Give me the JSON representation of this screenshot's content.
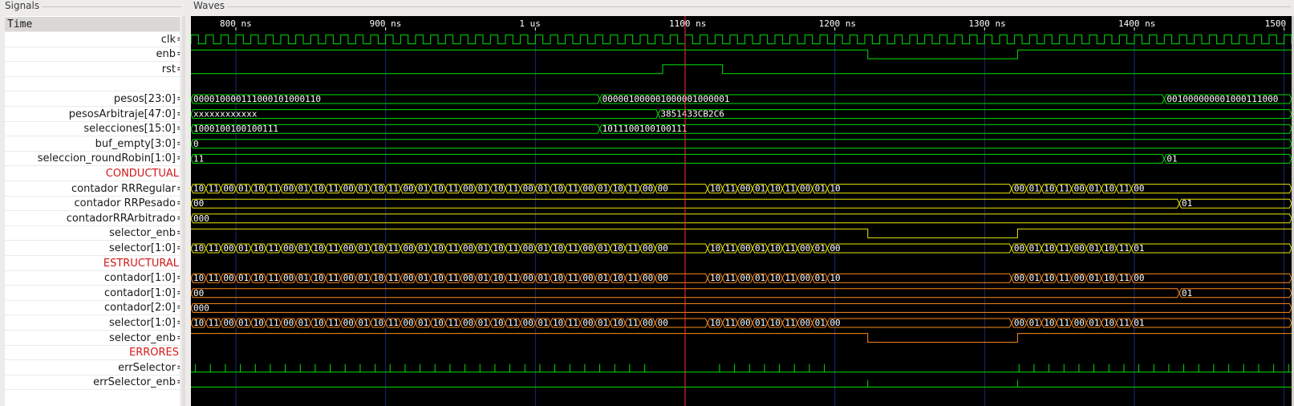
{
  "panels": {
    "signals_title": "Signals",
    "waves_title": "Waves"
  },
  "signals": [
    {
      "name": "Time",
      "kind": "header"
    },
    {
      "name": "clk",
      "val": "=0"
    },
    {
      "name": "enb",
      "val": "=1"
    },
    {
      "name": "rst",
      "val": "=1"
    },
    {
      "name": "",
      "kind": "blank"
    },
    {
      "name": "pesos[23:0]",
      "val": "=0"
    },
    {
      "name": "pesosArbitraje[47:0]",
      "val": "=3"
    },
    {
      "name": "selecciones[15:0]",
      "val": "=1"
    },
    {
      "name": "buf_empty[3:0]",
      "val": "=0"
    },
    {
      "name": "seleccion_roundRobin[1:0]",
      "val": "=1"
    },
    {
      "name": "CONDUCTUAL",
      "kind": "group"
    },
    {
      "name": "contador RRRegular",
      "val": "=0"
    },
    {
      "name": "contador RRPesado",
      "val": "=0"
    },
    {
      "name": "contadorRRArbitrado",
      "val": "=0"
    },
    {
      "name": "selector_enb",
      "val": "=1"
    },
    {
      "name": "selector[1:0]",
      "val": "=0"
    },
    {
      "name": "ESTRUCTURAL",
      "kind": "group"
    },
    {
      "name": "contador[1:0]",
      "val": "=0"
    },
    {
      "name": "contador[1:0]",
      "val": "=0"
    },
    {
      "name": "contador[2:0]",
      "val": "=0"
    },
    {
      "name": "selector[1:0]",
      "val": "=0"
    },
    {
      "name": "selector_enb",
      "val": "=1"
    },
    {
      "name": "ERRORES",
      "kind": "group"
    },
    {
      "name": "errSelector",
      "val": "=0"
    },
    {
      "name": "errSelector_enb",
      "val": "=0"
    }
  ],
  "timeline": {
    "labels": [
      "800 ns",
      "900 ns",
      "1 us",
      "1100 ns",
      "1200 ns",
      "1300 ns",
      "1400 ns",
      "1500"
    ],
    "start": 770,
    "end": 1505,
    "cursor": 1100
  },
  "bus_texts": {
    "pesos": [
      "000010000111000101000110",
      "000001000001000001000001",
      "001000000001000111000"
    ],
    "pesosArbitraje": [
      "xxxxxxxxxxxx",
      "3851433CB2C6"
    ],
    "selecciones": [
      "1000100100100111",
      "1011100100100111"
    ],
    "buf_empty": [
      "0"
    ],
    "seleccion_roundRobin": [
      "11",
      "01"
    ],
    "contador_rrpesado": [
      "00",
      "01"
    ],
    "contador_rra": [
      "000"
    ],
    "contador_est2": [
      "00",
      "01"
    ],
    "contador_est3": [
      "000"
    ],
    "counter_end_a": "00",
    "counter_end_b": "10",
    "counter_end_c": "01",
    "segment_vals": [
      "01",
      "10",
      "11",
      "00"
    ]
  },
  "colors": {
    "green": "#00e000",
    "yellow": "#e8e800",
    "orange": "#ff8c1a",
    "grid": "#1d2a7a",
    "cursor": "#ff3030",
    "group_text": "#d31818"
  }
}
